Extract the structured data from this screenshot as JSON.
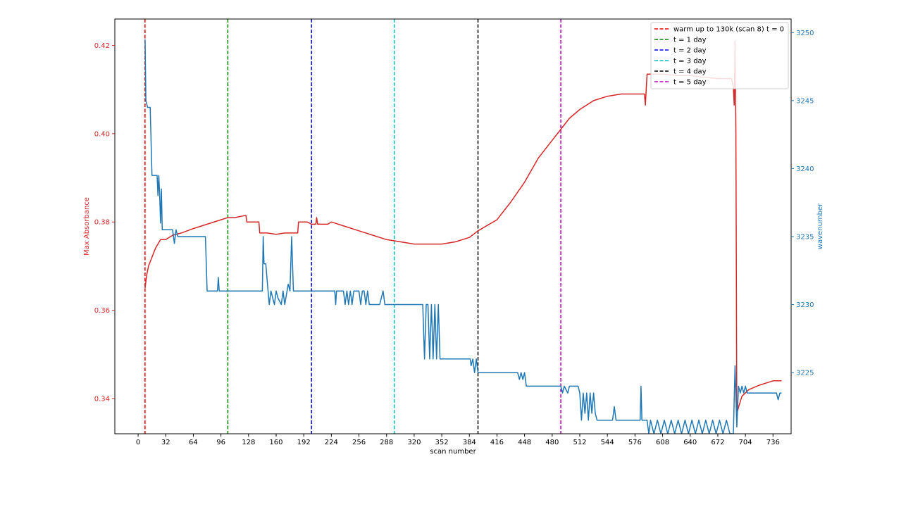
{
  "chart_data": {
    "type": "line",
    "title": "",
    "xlabel": "scan number",
    "ylabel_left": "Max Absorbance",
    "ylabel_right": "wavenumber",
    "xlim": [
      -27,
      757
    ],
    "ylim_left": [
      0.332,
      0.426
    ],
    "ylim_right": [
      3220.5,
      3251
    ],
    "x_ticks": [
      "0",
      "32",
      "64",
      "96",
      "128",
      "160",
      "192",
      "224",
      "256",
      "288",
      "320",
      "352",
      "384",
      "416",
      "448",
      "480",
      "512",
      "544",
      "576",
      "608",
      "640",
      "672",
      "704",
      "736"
    ],
    "y_left_ticks": [
      "0.34",
      "0.36",
      "0.38",
      "0.40",
      "0.42"
    ],
    "y_right_ticks": [
      "3225",
      "3230",
      "3235",
      "3240",
      "3245",
      "3250"
    ],
    "legend_position": "top-right",
    "colors": {
      "left_axis": "#d62728",
      "right_axis": "#1f77b4"
    },
    "vlines": [
      {
        "x": 8,
        "color": "#ff0000",
        "label": "warm up to 130k (scan 8) t = 0"
      },
      {
        "x": 104,
        "color": "#008000",
        "label": "t = 1 day"
      },
      {
        "x": 201,
        "color": "#0000ff",
        "label": "t = 2 day"
      },
      {
        "x": 297,
        "color": "#00bfbf",
        "label": "t = 3 day"
      },
      {
        "x": 394,
        "color": "#000000",
        "label": "t = 4 day"
      },
      {
        "x": 490,
        "color": "#bf00bf",
        "label": "t = 5 day"
      }
    ],
    "series": [
      {
        "axis": "left",
        "color": "#d62728",
        "points": [
          [
            8,
            0.365
          ],
          [
            10,
            0.368
          ],
          [
            12,
            0.37
          ],
          [
            16,
            0.372
          ],
          [
            20,
            0.374
          ],
          [
            26,
            0.376
          ],
          [
            32,
            0.376
          ],
          [
            40,
            0.377
          ],
          [
            50,
            0.3775
          ],
          [
            64,
            0.3785
          ],
          [
            80,
            0.3795
          ],
          [
            96,
            0.3805
          ],
          [
            104,
            0.381
          ],
          [
            112,
            0.381
          ],
          [
            125,
            0.3815
          ],
          [
            126,
            0.38
          ],
          [
            140,
            0.38
          ],
          [
            141,
            0.3775
          ],
          [
            150,
            0.3775
          ],
          [
            160,
            0.3772
          ],
          [
            170,
            0.3775
          ],
          [
            185,
            0.3775
          ],
          [
            186,
            0.38
          ],
          [
            196,
            0.38
          ],
          [
            201,
            0.3795
          ],
          [
            206,
            0.3795
          ],
          [
            207,
            0.381
          ],
          [
            208,
            0.3795
          ],
          [
            220,
            0.3795
          ],
          [
            224,
            0.38
          ],
          [
            240,
            0.379
          ],
          [
            256,
            0.378
          ],
          [
            272,
            0.377
          ],
          [
            288,
            0.376
          ],
          [
            304,
            0.3755
          ],
          [
            320,
            0.375
          ],
          [
            336,
            0.375
          ],
          [
            352,
            0.375
          ],
          [
            368,
            0.3755
          ],
          [
            384,
            0.3765
          ],
          [
            394,
            0.378
          ],
          [
            416,
            0.3805
          ],
          [
            432,
            0.3845
          ],
          [
            448,
            0.389
          ],
          [
            464,
            0.3945
          ],
          [
            480,
            0.3985
          ],
          [
            490,
            0.401
          ],
          [
            500,
            0.4035
          ],
          [
            512,
            0.4055
          ],
          [
            528,
            0.4075
          ],
          [
            544,
            0.4085
          ],
          [
            560,
            0.409
          ],
          [
            576,
            0.409
          ],
          [
            587,
            0.409
          ],
          [
            588,
            0.4065
          ],
          [
            590,
            0.4135
          ],
          [
            608,
            0.4135
          ],
          [
            624,
            0.4132
          ],
          [
            640,
            0.4132
          ],
          [
            656,
            0.4128
          ],
          [
            672,
            0.4125
          ],
          [
            688,
            0.4125
          ],
          [
            690,
            0.4105
          ],
          [
            691,
            0.4065
          ],
          [
            692,
            0.421
          ],
          [
            693,
            0.4
          ],
          [
            694,
            0.3365
          ],
          [
            696,
            0.338
          ],
          [
            700,
            0.3405
          ],
          [
            708,
            0.342
          ],
          [
            720,
            0.343
          ],
          [
            736,
            0.344
          ],
          [
            746,
            0.344
          ]
        ]
      },
      {
        "axis": "right",
        "color": "#1f77b4",
        "points": [
          [
            8,
            3249.5
          ],
          [
            9,
            3245
          ],
          [
            11,
            3244.5
          ],
          [
            14,
            3244.5
          ],
          [
            16,
            3239.5
          ],
          [
            22,
            3239.5
          ],
          [
            23,
            3238
          ],
          [
            24,
            3239.5
          ],
          [
            25,
            3238
          ],
          [
            26,
            3236
          ],
          [
            27,
            3238.5
          ],
          [
            28,
            3235.5
          ],
          [
            32,
            3235.5
          ],
          [
            40,
            3235.5
          ],
          [
            42,
            3234.5
          ],
          [
            44,
            3235.5
          ],
          [
            46,
            3235
          ],
          [
            78,
            3235
          ],
          [
            80,
            3231
          ],
          [
            92,
            3231
          ],
          [
            93,
            3232
          ],
          [
            94,
            3231
          ],
          [
            144,
            3231
          ],
          [
            145,
            3235
          ],
          [
            146,
            3233
          ],
          [
            148,
            3233
          ],
          [
            150,
            3231.5
          ],
          [
            152,
            3230
          ],
          [
            154,
            3231
          ],
          [
            158,
            3230
          ],
          [
            160,
            3231
          ],
          [
            162,
            3230.5
          ],
          [
            166,
            3230
          ],
          [
            168,
            3231
          ],
          [
            170,
            3230
          ],
          [
            174,
            3231.5
          ],
          [
            176,
            3231
          ],
          [
            178,
            3235
          ],
          [
            180,
            3231
          ],
          [
            228,
            3231
          ],
          [
            229,
            3230
          ],
          [
            230,
            3231
          ],
          [
            238,
            3231
          ],
          [
            240,
            3230
          ],
          [
            242,
            3231
          ],
          [
            244,
            3230
          ],
          [
            246,
            3231
          ],
          [
            248,
            3230
          ],
          [
            250,
            3231
          ],
          [
            256,
            3231
          ],
          [
            258,
            3230
          ],
          [
            260,
            3231
          ],
          [
            262,
            3231
          ],
          [
            264,
            3230
          ],
          [
            266,
            3231
          ],
          [
            268,
            3230
          ],
          [
            272,
            3230
          ],
          [
            280,
            3230
          ],
          [
            284,
            3231
          ],
          [
            286,
            3230
          ],
          [
            297,
            3230
          ],
          [
            330,
            3230
          ],
          [
            332,
            3226
          ],
          [
            334,
            3230
          ],
          [
            336,
            3230
          ],
          [
            338,
            3226
          ],
          [
            340,
            3230
          ],
          [
            342,
            3226
          ],
          [
            344,
            3230
          ],
          [
            346,
            3226
          ],
          [
            348,
            3230
          ],
          [
            350,
            3226
          ],
          [
            372,
            3226
          ],
          [
            385,
            3226
          ],
          [
            386,
            3225.5
          ],
          [
            388,
            3226
          ],
          [
            390,
            3225
          ],
          [
            392,
            3226
          ],
          [
            394,
            3225
          ],
          [
            440,
            3225
          ],
          [
            442,
            3224.5
          ],
          [
            444,
            3225
          ],
          [
            446,
            3224.5
          ],
          [
            448,
            3225
          ],
          [
            450,
            3224
          ],
          [
            480,
            3224
          ],
          [
            490,
            3224
          ],
          [
            492,
            3223.5
          ],
          [
            494,
            3224
          ],
          [
            498,
            3223.5
          ],
          [
            500,
            3224
          ],
          [
            510,
            3224
          ],
          [
            512,
            3223.5
          ],
          [
            514,
            3221.5
          ],
          [
            516,
            3223.5
          ],
          [
            518,
            3222
          ],
          [
            520,
            3223.5
          ],
          [
            522,
            3221.5
          ],
          [
            524,
            3223.5
          ],
          [
            526,
            3222
          ],
          [
            528,
            3223.5
          ],
          [
            530,
            3222
          ],
          [
            532,
            3221.5
          ],
          [
            540,
            3221.5
          ],
          [
            550,
            3221.5
          ],
          [
            552,
            3222.5
          ],
          [
            554,
            3221.5
          ],
          [
            582,
            3221.5
          ],
          [
            583,
            3224
          ],
          [
            584,
            3221.5
          ],
          [
            590,
            3221.5
          ],
          [
            592,
            3220.5
          ],
          [
            594,
            3221.5
          ],
          [
            598,
            3220.5
          ],
          [
            602,
            3221.5
          ],
          [
            606,
            3220.5
          ],
          [
            610,
            3221.5
          ],
          [
            614,
            3220.5
          ],
          [
            618,
            3221.5
          ],
          [
            622,
            3220.5
          ],
          [
            626,
            3221.5
          ],
          [
            630,
            3220.5
          ],
          [
            634,
            3221.5
          ],
          [
            638,
            3220.5
          ],
          [
            642,
            3221.5
          ],
          [
            646,
            3220.5
          ],
          [
            650,
            3221.5
          ],
          [
            654,
            3220.5
          ],
          [
            658,
            3221.5
          ],
          [
            662,
            3220.5
          ],
          [
            666,
            3221.5
          ],
          [
            670,
            3220.5
          ],
          [
            674,
            3221.5
          ],
          [
            678,
            3220.5
          ],
          [
            682,
            3221.5
          ],
          [
            686,
            3220.5
          ],
          [
            690,
            3220.5
          ],
          [
            692,
            3225.5
          ],
          [
            694,
            3221
          ],
          [
            696,
            3224
          ],
          [
            698,
            3223.5
          ],
          [
            700,
            3224
          ],
          [
            702,
            3223.5
          ],
          [
            704,
            3224
          ],
          [
            706,
            3223.5
          ],
          [
            720,
            3223.5
          ],
          [
            740,
            3223.5
          ],
          [
            742,
            3223
          ],
          [
            744,
            3223.5
          ],
          [
            746,
            3223.5
          ]
        ]
      }
    ]
  }
}
